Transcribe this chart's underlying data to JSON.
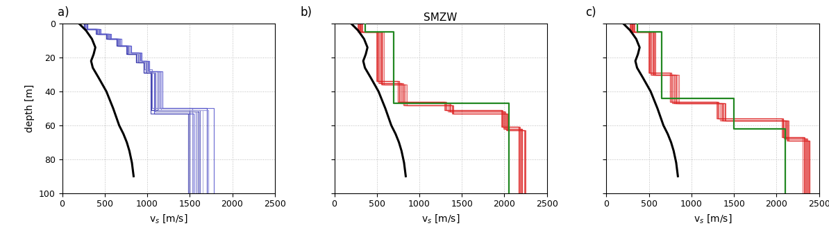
{
  "title_b": "SMZW",
  "xlim": [
    0,
    2500
  ],
  "ylim": [
    100,
    0
  ],
  "yticks": [
    0,
    20,
    40,
    60,
    80,
    100
  ],
  "xticks": [
    0,
    500,
    1000,
    1500,
    2000,
    2500
  ],
  "blue_color_dark": "#2222aa",
  "blue_color_mid": "#4444bb",
  "blue_color_light": "#8888cc",
  "red_color": "#dd2222",
  "green_color": "#228822",
  "black_color": "#000000",
  "lw_colored": 0.85,
  "lw_black": 2.2,
  "lw_green": 1.6,
  "black_curve_vs": [
    200,
    280,
    350,
    390,
    370,
    340,
    360,
    430,
    520,
    600,
    670,
    720,
    760,
    790,
    820,
    840
  ],
  "black_curve_depth": [
    0,
    4,
    9,
    14,
    18,
    22,
    26,
    32,
    40,
    50,
    60,
    65,
    70,
    75,
    82,
    90
  ],
  "green_b_vs": [
    360,
    360,
    700,
    700,
    2050,
    2050,
    2050
  ],
  "green_b_depth": [
    0,
    5,
    5,
    47,
    47,
    65,
    100
  ],
  "green_c_vs": [
    360,
    360,
    650,
    650,
    1500,
    1500,
    2100,
    2100
  ],
  "green_c_depth": [
    0,
    5,
    5,
    44,
    44,
    62,
    62,
    100
  ],
  "blue_profiles": [
    {
      "vs": [
        280,
        280,
        420,
        420,
        540,
        540,
        660,
        660,
        780,
        780,
        900,
        900,
        990,
        990,
        1050,
        1050,
        1500,
        1500
      ],
      "depth": [
        0,
        3,
        3,
        6,
        6,
        9,
        9,
        13,
        13,
        17,
        17,
        22,
        22,
        28,
        28,
        51,
        51,
        100
      ]
    },
    {
      "vs": [
        260,
        260,
        400,
        400,
        520,
        520,
        640,
        640,
        760,
        760,
        870,
        870,
        960,
        960,
        1100,
        1100,
        1600,
        1600
      ],
      "depth": [
        0,
        3,
        3,
        6,
        6,
        9,
        9,
        13,
        13,
        18,
        18,
        23,
        23,
        29,
        29,
        52,
        52,
        100
      ]
    },
    {
      "vs": [
        290,
        290,
        440,
        440,
        560,
        560,
        680,
        680,
        800,
        800,
        920,
        920,
        1010,
        1010,
        1150,
        1150,
        1700,
        1700
      ],
      "depth": [
        0,
        3,
        3,
        6,
        6,
        9,
        9,
        13,
        13,
        17,
        17,
        22,
        22,
        28,
        28,
        50,
        50,
        100
      ]
    },
    {
      "vs": [
        270,
        270,
        410,
        410,
        535,
        535,
        655,
        655,
        775,
        775,
        890,
        890,
        980,
        980,
        1080,
        1080,
        1550,
        1550
      ],
      "depth": [
        0,
        3,
        3,
        6,
        6,
        9,
        9,
        13,
        13,
        18,
        18,
        23,
        23,
        29,
        29,
        53,
        53,
        100
      ]
    },
    {
      "vs": [
        285,
        285,
        430,
        430,
        550,
        550,
        670,
        670,
        790,
        790,
        905,
        905,
        995,
        995,
        1120,
        1120,
        1620,
        1620
      ],
      "depth": [
        0,
        3,
        3,
        6,
        6,
        9,
        9,
        13,
        13,
        17,
        17,
        22,
        22,
        28,
        28,
        51,
        51,
        100
      ]
    },
    {
      "vs": [
        275,
        275,
        415,
        415,
        540,
        540,
        660,
        660,
        780,
        780,
        895,
        895,
        985,
        985,
        1090,
        1090,
        1570,
        1570
      ],
      "depth": [
        0,
        3,
        3,
        6,
        6,
        9,
        9,
        13,
        13,
        18,
        18,
        23,
        23,
        29,
        29,
        52,
        52,
        100
      ]
    },
    {
      "vs": [
        265,
        265,
        405,
        405,
        525,
        525,
        645,
        645,
        765,
        765,
        875,
        875,
        965,
        965,
        1060,
        1060,
        1530,
        1530
      ],
      "depth": [
        0,
        3,
        3,
        6,
        6,
        9,
        9,
        13,
        13,
        17,
        17,
        22,
        22,
        27,
        27,
        50,
        50,
        100
      ]
    },
    {
      "vs": [
        295,
        295,
        445,
        445,
        565,
        565,
        685,
        685,
        805,
        805,
        925,
        925,
        1015,
        1015,
        1160,
        1160,
        1720,
        1720
      ],
      "depth": [
        0,
        3,
        3,
        6,
        6,
        9,
        9,
        13,
        13,
        17,
        17,
        22,
        22,
        28,
        28,
        51,
        51,
        100
      ]
    },
    {
      "vs": [
        278,
        278,
        418,
        418,
        542,
        542,
        663,
        663,
        783,
        783,
        900,
        900,
        992,
        992,
        1100,
        1100,
        1590,
        1590
      ],
      "depth": [
        0,
        3,
        3,
        6,
        6,
        9,
        9,
        13,
        13,
        18,
        18,
        23,
        23,
        29,
        29,
        52,
        52,
        100
      ]
    },
    {
      "vs": [
        283,
        283,
        425,
        425,
        548,
        548,
        668,
        668,
        788,
        788,
        907,
        907,
        998,
        998,
        1130,
        1130,
        1650,
        1650
      ],
      "depth": [
        0,
        3,
        3,
        6,
        6,
        9,
        9,
        13,
        13,
        17,
        17,
        22,
        22,
        28,
        28,
        51,
        51,
        100
      ]
    },
    {
      "vs": [
        258,
        258,
        398,
        398,
        518,
        518,
        638,
        638,
        758,
        758,
        868,
        868,
        958,
        958,
        1040,
        1040,
        1480,
        1480
      ],
      "depth": [
        0,
        3,
        3,
        6,
        6,
        9,
        9,
        13,
        13,
        18,
        18,
        23,
        23,
        29,
        29,
        53,
        53,
        100
      ]
    },
    {
      "vs": [
        300,
        300,
        450,
        450,
        575,
        575,
        695,
        695,
        815,
        815,
        935,
        935,
        1025,
        1025,
        1180,
        1180,
        1780,
        1780
      ],
      "depth": [
        0,
        3,
        3,
        6,
        6,
        9,
        9,
        13,
        13,
        17,
        17,
        22,
        22,
        28,
        28,
        50,
        50,
        100
      ]
    }
  ],
  "blue_depth_offsets": [
    0,
    1,
    -1,
    2,
    -2,
    1,
    -1,
    0,
    2,
    -2,
    1,
    -1
  ],
  "red_b_profiles": [
    {
      "vs": [
        310,
        310,
        540,
        540,
        800,
        800,
        1350,
        1350,
        2000,
        2000,
        2200,
        2200
      ],
      "depth": [
        0,
        5,
        5,
        35,
        35,
        47,
        47,
        52,
        52,
        62,
        62,
        100
      ]
    },
    {
      "vs": [
        290,
        290,
        510,
        510,
        760,
        760,
        1300,
        1300,
        1970,
        1970,
        2170,
        2170
      ],
      "depth": [
        0,
        5,
        5,
        34,
        34,
        46,
        46,
        51,
        51,
        61,
        61,
        100
      ]
    },
    {
      "vs": [
        320,
        320,
        560,
        560,
        820,
        820,
        1380,
        1380,
        2020,
        2020,
        2230,
        2230
      ],
      "depth": [
        0,
        5,
        5,
        36,
        36,
        48,
        48,
        53,
        53,
        63,
        63,
        100
      ]
    },
    {
      "vs": [
        300,
        300,
        530,
        530,
        790,
        790,
        1360,
        1360,
        2010,
        2010,
        2210,
        2210
      ],
      "depth": [
        0,
        5,
        5,
        35,
        35,
        47,
        47,
        52,
        52,
        62,
        62,
        100
      ]
    },
    {
      "vs": [
        280,
        280,
        500,
        500,
        750,
        750,
        1320,
        1320,
        1980,
        1980,
        2180,
        2180
      ],
      "depth": [
        0,
        5,
        5,
        34,
        34,
        46,
        46,
        51,
        51,
        61,
        61,
        100
      ]
    },
    {
      "vs": [
        330,
        330,
        580,
        580,
        850,
        850,
        1400,
        1400,
        2040,
        2040,
        2250,
        2250
      ],
      "depth": [
        0,
        5,
        5,
        36,
        36,
        48,
        48,
        53,
        53,
        63,
        63,
        100
      ]
    },
    {
      "vs": [
        295,
        295,
        520,
        520,
        775,
        775,
        1335,
        1335,
        1990,
        1990,
        2190,
        2190
      ],
      "depth": [
        0,
        5,
        5,
        35,
        35,
        47,
        47,
        52,
        52,
        62,
        62,
        100
      ]
    },
    {
      "vs": [
        305,
        305,
        545,
        545,
        810,
        810,
        1370,
        1370,
        2005,
        2005,
        2205,
        2205
      ],
      "depth": [
        0,
        5,
        5,
        35,
        35,
        47,
        47,
        52,
        52,
        62,
        62,
        100
      ]
    },
    {
      "vs": [
        285,
        285,
        505,
        505,
        760,
        760,
        1310,
        1310,
        1975,
        1975,
        2175,
        2175
      ],
      "depth": [
        0,
        5,
        5,
        34,
        34,
        46,
        46,
        51,
        51,
        61,
        61,
        100
      ]
    },
    {
      "vs": [
        315,
        315,
        555,
        555,
        815,
        815,
        1390,
        1390,
        2030,
        2030,
        2240,
        2240
      ],
      "depth": [
        0,
        5,
        5,
        36,
        36,
        48,
        48,
        53,
        53,
        63,
        63,
        100
      ]
    },
    {
      "vs": [
        275,
        275,
        495,
        495,
        745,
        745,
        1295,
        1295,
        1965,
        1965,
        2165,
        2165
      ],
      "depth": [
        0,
        5,
        5,
        34,
        34,
        46,
        46,
        51,
        51,
        61,
        61,
        100
      ]
    },
    {
      "vs": [
        325,
        325,
        570,
        570,
        835,
        835,
        1395,
        1395,
        2035,
        2035,
        2245,
        2245
      ],
      "depth": [
        0,
        5,
        5,
        36,
        36,
        48,
        48,
        53,
        53,
        63,
        63,
        100
      ]
    }
  ],
  "red_c_profiles": [
    {
      "vs": [
        310,
        310,
        540,
        540,
        800,
        800,
        1350,
        1350,
        2100,
        2100,
        2350,
        2350
      ],
      "depth": [
        0,
        5,
        5,
        30,
        30,
        47,
        47,
        57,
        57,
        68,
        68,
        100
      ]
    },
    {
      "vs": [
        290,
        290,
        510,
        510,
        760,
        760,
        1300,
        1300,
        2070,
        2070,
        2320,
        2320
      ],
      "depth": [
        0,
        5,
        5,
        29,
        29,
        46,
        46,
        56,
        56,
        67,
        67,
        100
      ]
    },
    {
      "vs": [
        320,
        320,
        560,
        560,
        820,
        820,
        1380,
        1380,
        2120,
        2120,
        2370,
        2370
      ],
      "depth": [
        0,
        5,
        5,
        30,
        30,
        47,
        47,
        57,
        57,
        69,
        69,
        100
      ]
    },
    {
      "vs": [
        300,
        300,
        530,
        530,
        790,
        790,
        1360,
        1360,
        2110,
        2110,
        2360,
        2360
      ],
      "depth": [
        0,
        5,
        5,
        30,
        30,
        47,
        47,
        57,
        57,
        68,
        68,
        100
      ]
    },
    {
      "vs": [
        280,
        280,
        500,
        500,
        750,
        750,
        1320,
        1320,
        2080,
        2080,
        2330,
        2330
      ],
      "depth": [
        0,
        5,
        5,
        29,
        29,
        46,
        46,
        56,
        56,
        67,
        67,
        100
      ]
    },
    {
      "vs": [
        330,
        330,
        580,
        580,
        850,
        850,
        1400,
        1400,
        2140,
        2140,
        2390,
        2390
      ],
      "depth": [
        0,
        5,
        5,
        30,
        30,
        47,
        47,
        57,
        57,
        69,
        69,
        100
      ]
    },
    {
      "vs": [
        295,
        295,
        520,
        520,
        775,
        775,
        1335,
        1335,
        2090,
        2090,
        2340,
        2340
      ],
      "depth": [
        0,
        5,
        5,
        30,
        30,
        47,
        47,
        57,
        57,
        68,
        68,
        100
      ]
    },
    {
      "vs": [
        305,
        305,
        545,
        545,
        810,
        810,
        1370,
        1370,
        2105,
        2105,
        2355,
        2355
      ],
      "depth": [
        0,
        5,
        5,
        30,
        30,
        47,
        47,
        57,
        57,
        68,
        68,
        100
      ]
    },
    {
      "vs": [
        285,
        285,
        505,
        505,
        760,
        760,
        1310,
        1310,
        2075,
        2075,
        2325,
        2325
      ],
      "depth": [
        0,
        5,
        5,
        29,
        29,
        46,
        46,
        56,
        56,
        67,
        67,
        100
      ]
    },
    {
      "vs": [
        315,
        315,
        555,
        555,
        815,
        815,
        1390,
        1390,
        2130,
        2130,
        2380,
        2380
      ],
      "depth": [
        0,
        5,
        5,
        30,
        30,
        47,
        47,
        57,
        57,
        69,
        69,
        100
      ]
    },
    {
      "vs": [
        275,
        275,
        495,
        495,
        745,
        745,
        1295,
        1295,
        2065,
        2065,
        2310,
        2310
      ],
      "depth": [
        0,
        5,
        5,
        29,
        29,
        46,
        46,
        56,
        56,
        67,
        67,
        100
      ]
    },
    {
      "vs": [
        325,
        325,
        570,
        570,
        835,
        835,
        1395,
        1395,
        2135,
        2135,
        2385,
        2385
      ],
      "depth": [
        0,
        5,
        5,
        30,
        30,
        47,
        47,
        57,
        57,
        69,
        69,
        100
      ]
    }
  ]
}
